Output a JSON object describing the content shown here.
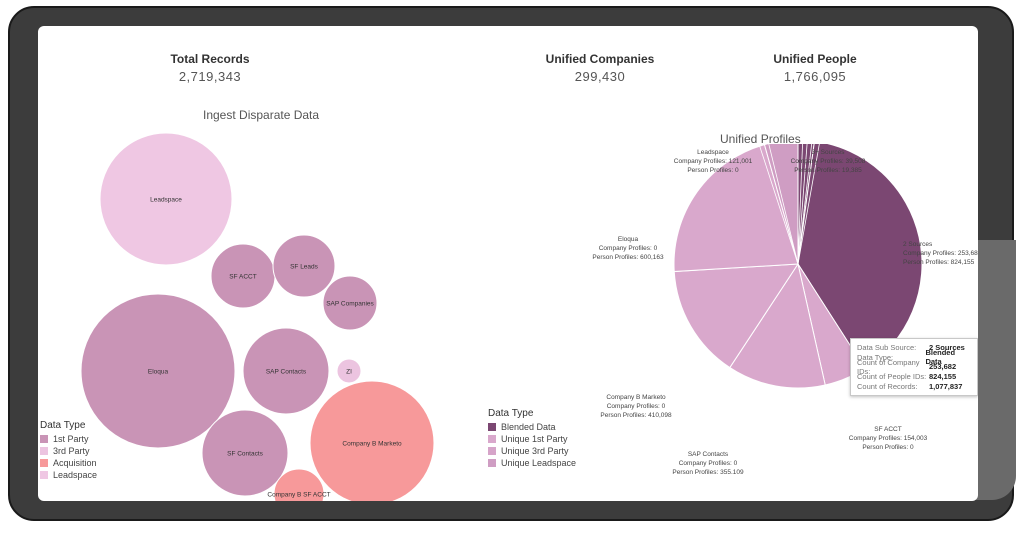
{
  "kpis": {
    "total_records": {
      "label": "Total Records",
      "value": "2,719,343"
    },
    "unified_companies": {
      "label": "Unified Companies",
      "value": "299,430"
    },
    "unified_people": {
      "label": "Unified People",
      "value": "1,766,095"
    }
  },
  "bubble_section": {
    "title": "Ingest Disparate Data"
  },
  "pie_section": {
    "title": "Unified Profiles"
  },
  "colors": {
    "first_party": "#c994b6",
    "third_party": "#ecc4e0",
    "acquisition": "#f7999a",
    "leadspace": "#efc7e3",
    "blended": "#7b4772",
    "unique_first": "#d9a8cc",
    "unique_third": "#d6a4c9",
    "unique_leadspace": "#cf9dc3"
  },
  "chart_data": [
    {
      "type": "bubble",
      "title": "Ingest Disparate Data",
      "bubbles": [
        {
          "label": "Leadspace",
          "category": "Leadspace"
        },
        {
          "label": "SF ACCT",
          "category": "1st Party"
        },
        {
          "label": "SF Leads",
          "category": "1st Party"
        },
        {
          "label": "SAP Companies",
          "category": "1st Party"
        },
        {
          "label": "Eloqua",
          "category": "1st Party"
        },
        {
          "label": "SAP Contacts",
          "category": "1st Party"
        },
        {
          "label": "ZI",
          "category": "3rd Party"
        },
        {
          "label": "SF Contacts",
          "category": "1st Party"
        },
        {
          "label": "Company B Marketo",
          "category": "Acquisition"
        },
        {
          "label": "Company B SF ACCT",
          "category": "Acquisition"
        }
      ],
      "legend": {
        "title": "Data Type",
        "items": [
          "1st Party",
          "3rd Party",
          "Acquisition",
          "Leadspace"
        ]
      }
    },
    {
      "type": "pie",
      "title": "Unified Profiles",
      "slices": [
        {
          "name": "3+ Sources",
          "company_profiles": "39,508",
          "person_profiles": "19,385",
          "value": 58893,
          "type": "Blended Data"
        },
        {
          "name": "2 Sources",
          "company_profiles": "253,682",
          "person_profiles": "824,155",
          "value": 1077837,
          "type": "Blended Data"
        },
        {
          "name": "SF ACCT",
          "company_profiles": "154,003",
          "person_profiles": "0",
          "value": 154003,
          "type": "Unique 1st Party"
        },
        {
          "name": "SAP Contacts",
          "company_profiles": "0",
          "person_profiles": "355,109",
          "value": 355109,
          "type": "Unique 1st Party"
        },
        {
          "name": "Company B Marketo",
          "company_profiles": "0",
          "person_profiles": "410,098",
          "value": 410098,
          "type": "Unique 1st Party"
        },
        {
          "name": "Eloqua",
          "company_profiles": "0",
          "person_profiles": "600,163",
          "value": 600163,
          "type": "Unique 1st Party"
        },
        {
          "name": "Leadspace",
          "company_profiles": "121,001",
          "person_profiles": "0",
          "value": 121001,
          "type": "Unique Leadspace"
        }
      ],
      "legend": {
        "title": "Data Type",
        "items": [
          "Blended Data",
          "Unique 1st Party",
          "Unique 3rd Party",
          "Unique Leadspace"
        ]
      }
    }
  ],
  "pie_labels": {
    "company_prefix": "Company Profiles: ",
    "person_prefix": "Person Profiles: "
  },
  "tooltip": {
    "rows": [
      {
        "key": "Data Sub Source:",
        "value": "2 Sources"
      },
      {
        "key": "Data Type:",
        "value": "Blended Data"
      },
      {
        "key": "Count of Company IDs:",
        "value": "253,682"
      },
      {
        "key": "Count of People IDs:",
        "value": "824,155"
      },
      {
        "key": "Count of Records:",
        "value": "1,077,837"
      }
    ]
  }
}
